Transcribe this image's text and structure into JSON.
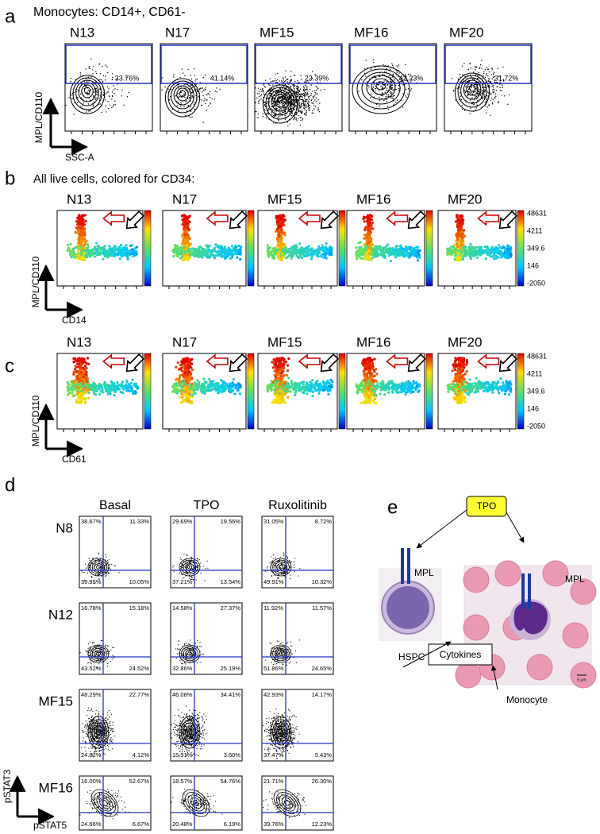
{
  "panel_a": {
    "label": "a",
    "title": "Monocytes: CD14+, CD61-",
    "samples": [
      "N13",
      "N17",
      "MF15",
      "MF16",
      "MF20"
    ],
    "percentages": [
      "33.76%",
      "41.14%",
      "23.39%",
      "42.23%",
      "31.72%"
    ],
    "y_axis": "MPL/CD110",
    "x_axis": "SSC-A"
  },
  "panel_b": {
    "label": "b",
    "title": "All live cells, colored for CD34:",
    "samples": [
      "N13",
      "N17",
      "MF15",
      "MF16",
      "MF20"
    ],
    "colorbar_labels": [
      "48631",
      "4211",
      "349.6",
      "146",
      "-2050"
    ],
    "y_axis": "MPL/CD110",
    "x_axis": "CD14"
  },
  "panel_c": {
    "label": "c",
    "samples": [
      "N13",
      "N17",
      "MF15",
      "MF16",
      "MF20"
    ],
    "colorbar_labels": [
      "48631",
      "4211",
      "349.6",
      "146",
      "-2050"
    ],
    "y_axis": "MPL/CD110",
    "x_axis": "CD61"
  },
  "panel_d": {
    "label": "d",
    "columns": [
      "Basal",
      "TPO",
      "Ruxolitinib"
    ],
    "rows": [
      {
        "name": "N8",
        "quadrants": [
          [
            "38.67%",
            "11.33%",
            "39.95%",
            "10.05%"
          ],
          [
            "29.69%",
            "19.56%",
            "37.21%",
            "13.54%"
          ],
          [
            "31.05%",
            "8.72%",
            "49.91%",
            "10.32%"
          ]
        ]
      },
      {
        "name": "N12",
        "quadrants": [
          [
            "16.78%",
            "15.18%",
            "43.52%",
            "24.52%"
          ],
          [
            "14.58%",
            "27.37%",
            "32.86%",
            "25.19%"
          ],
          [
            "11.92%",
            "11.57%",
            "51.86%",
            "24.65%"
          ]
        ]
      },
      {
        "name": "MF15",
        "quadrants": [
          [
            "48.29%",
            "22.77%",
            "24.82%",
            "4.12%"
          ],
          [
            "46.08%",
            "34.41%",
            "15.91%",
            "3.60%"
          ],
          [
            "42.93%",
            "14.17%",
            "37.47%",
            "5.43%"
          ]
        ]
      },
      {
        "name": "MF16",
        "quadrants": [
          [
            "16.00%",
            "52.67%",
            "24.66%",
            "6.67%"
          ],
          [
            "18.57%",
            "54.76%",
            "20.48%",
            "6.19%"
          ],
          [
            "21.71%",
            "26.30%",
            "39.76%",
            "12.23%"
          ]
        ]
      }
    ],
    "y_axis": "pSTAT3",
    "x_axis": "pSTAT5"
  },
  "panel_e": {
    "label": "e",
    "ligand": "TPO",
    "receptor_labels": [
      "MPL",
      "MPL"
    ],
    "cells": [
      "HSPC",
      "Monocyte"
    ],
    "output": "Cytokines",
    "scale_bar": "5 µm"
  }
}
